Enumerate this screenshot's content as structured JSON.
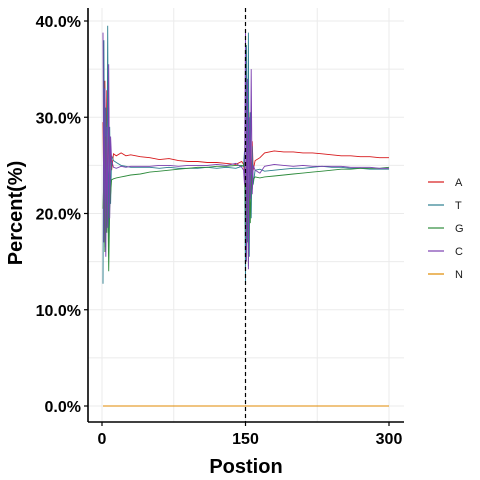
{
  "chart_data": {
    "type": "line",
    "xlabel": "Postion",
    "ylabel": "Percent(%)",
    "xlim": [
      0,
      300
    ],
    "ylim": [
      0,
      40
    ],
    "xticks": [
      0,
      150,
      300
    ],
    "xtick_labels": [
      "0",
      "150",
      "300"
    ],
    "yticks": [
      0,
      10,
      20,
      30,
      40
    ],
    "ytick_labels": [
      "0.0%",
      "10.0%",
      "20.0%",
      "30.0%",
      "40.0%"
    ],
    "grid": true,
    "legend_position": "right",
    "vline_x": 150,
    "series": [
      {
        "name": "A",
        "color": "#d7191c",
        "x": [
          1,
          2,
          3,
          4,
          5,
          6,
          7,
          8,
          9,
          10,
          12,
          15,
          20,
          25,
          30,
          40,
          50,
          60,
          70,
          80,
          90,
          100,
          110,
          120,
          130,
          140,
          146,
          148,
          149,
          150,
          151,
          152,
          153,
          154,
          155,
          156,
          157,
          158,
          160,
          165,
          170,
          180,
          190,
          200,
          210,
          220,
          230,
          240,
          250,
          260,
          270,
          280,
          290,
          300
        ],
        "values": [
          29.5,
          21.0,
          33.8,
          24.5,
          32.8,
          19.5,
          31.0,
          22.5,
          27.0,
          24.5,
          26.2,
          26.0,
          26.3,
          26.0,
          26.1,
          25.9,
          25.8,
          25.6,
          25.7,
          25.5,
          25.4,
          25.4,
          25.3,
          25.3,
          25.2,
          25.1,
          25.4,
          25.1,
          24.2,
          22.5,
          30.0,
          21.0,
          33.5,
          23.5,
          30.5,
          22.0,
          27.5,
          24.5,
          25.5,
          25.8,
          26.3,
          26.5,
          26.4,
          26.4,
          26.3,
          26.3,
          26.2,
          26.1,
          26.0,
          26.0,
          25.9,
          25.9,
          25.8,
          25.8
        ]
      },
      {
        "name": "T",
        "color": "#2c7f8f",
        "x": [
          1,
          2,
          3,
          4,
          5,
          6,
          7,
          8,
          9,
          10,
          12,
          15,
          20,
          25,
          30,
          40,
          50,
          60,
          70,
          80,
          90,
          100,
          110,
          120,
          130,
          140,
          146,
          148,
          149,
          150,
          151,
          152,
          153,
          154,
          155,
          156,
          157,
          158,
          160,
          165,
          170,
          180,
          190,
          200,
          210,
          220,
          230,
          240,
          250,
          260,
          270,
          280,
          290,
          300
        ],
        "values": [
          12.7,
          38.0,
          16.5,
          31.0,
          20.0,
          39.5,
          17.0,
          29.0,
          21.0,
          26.0,
          25.5,
          25.3,
          25.0,
          24.9,
          24.8,
          24.8,
          24.8,
          24.7,
          24.8,
          24.7,
          24.7,
          24.7,
          24.8,
          24.7,
          24.8,
          24.7,
          24.9,
          25.0,
          26.5,
          12.8,
          37.5,
          17.0,
          38.8,
          15.5,
          30.5,
          19.5,
          27.0,
          23.0,
          24.5,
          24.6,
          24.4,
          24.5,
          24.6,
          24.7,
          24.7,
          24.8,
          24.9,
          24.8,
          24.8,
          24.7,
          24.7,
          24.6,
          24.6,
          24.6
        ]
      },
      {
        "name": "G",
        "color": "#2e8b3c",
        "x": [
          1,
          2,
          3,
          4,
          5,
          6,
          7,
          8,
          9,
          10,
          12,
          15,
          20,
          25,
          30,
          40,
          50,
          60,
          70,
          80,
          90,
          100,
          110,
          120,
          130,
          140,
          146,
          148,
          149,
          150,
          151,
          152,
          153,
          154,
          155,
          156,
          157,
          158,
          160,
          165,
          170,
          180,
          190,
          200,
          210,
          220,
          230,
          240,
          250,
          260,
          270,
          280,
          290,
          300
        ],
        "values": [
          20.5,
          24.0,
          16.0,
          28.0,
          18.0,
          22.5,
          14.0,
          20.5,
          22.0,
          23.5,
          23.6,
          23.7,
          23.8,
          23.9,
          24.0,
          24.1,
          24.3,
          24.4,
          24.5,
          24.6,
          24.7,
          24.8,
          24.8,
          24.9,
          24.9,
          25.0,
          25.0,
          24.9,
          25.5,
          20.0,
          16.0,
          25.5,
          14.5,
          23.0,
          19.0,
          24.0,
          22.5,
          23.5,
          23.8,
          23.7,
          23.8,
          23.9,
          24.0,
          24.1,
          24.2,
          24.3,
          24.4,
          24.5,
          24.6,
          24.6,
          24.7,
          24.7,
          24.7,
          24.8
        ]
      },
      {
        "name": "C",
        "color": "#7b3fb0",
        "x": [
          1,
          2,
          3,
          4,
          5,
          6,
          7,
          8,
          9,
          10,
          12,
          15,
          20,
          25,
          30,
          40,
          50,
          60,
          70,
          80,
          90,
          100,
          110,
          120,
          130,
          140,
          146,
          148,
          149,
          150,
          151,
          152,
          153,
          154,
          155,
          156,
          157,
          158,
          160,
          165,
          170,
          180,
          190,
          200,
          210,
          220,
          230,
          240,
          250,
          260,
          270,
          280,
          290,
          300
        ],
        "values": [
          38.8,
          17.0,
          33.0,
          15.5,
          29.0,
          18.5,
          35.5,
          19.5,
          28.0,
          25.5,
          24.8,
          24.7,
          24.9,
          24.8,
          24.9,
          24.9,
          24.9,
          25.0,
          25.0,
          24.9,
          25.0,
          25.0,
          25.0,
          25.1,
          25.0,
          25.2,
          24.8,
          24.5,
          23.0,
          39.0,
          15.0,
          34.0,
          14.2,
          30.0,
          21.5,
          35.0,
          22.0,
          25.0,
          24.5,
          24.2,
          24.9,
          25.1,
          25.0,
          24.9,
          25.0,
          24.9,
          24.9,
          24.9,
          24.9,
          24.8,
          24.8,
          24.8,
          24.7,
          24.7
        ]
      },
      {
        "name": "N",
        "color": "#e08a00",
        "x": [
          1,
          300
        ],
        "values": [
          0.0,
          0.0
        ]
      }
    ]
  }
}
